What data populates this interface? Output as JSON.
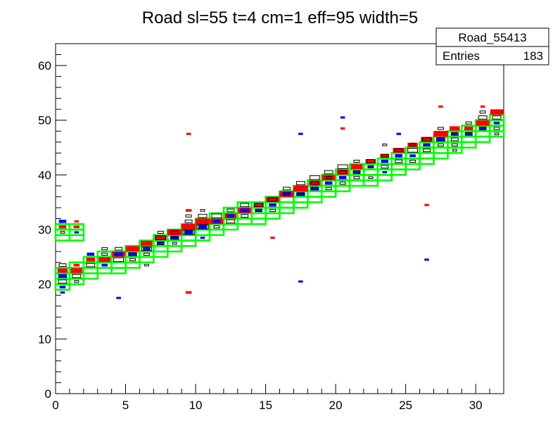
{
  "chart_data": {
    "type": "heatmap",
    "title": "Road sl=55 t=4 cm=1 eff=95 width=5",
    "xlabel": "",
    "ylabel": "",
    "xlim": [
      0,
      32
    ],
    "ylim": [
      0,
      64
    ],
    "x_ticks": [
      0,
      5,
      10,
      15,
      20,
      25,
      30
    ],
    "y_ticks": [
      0,
      10,
      20,
      30,
      40,
      50,
      60
    ],
    "stats": {
      "name": "Road_55413",
      "entries_label": "Entries",
      "entries": "183"
    },
    "road": {
      "color": "#00ff00",
      "x": [
        0,
        1,
        2,
        3,
        4,
        5,
        6,
        7,
        8,
        9,
        10,
        11,
        12,
        13,
        14,
        15,
        16,
        17,
        18,
        19,
        20,
        21,
        22,
        23,
        24,
        25,
        26,
        27,
        28,
        29,
        30,
        31
      ],
      "y_low": [
        19,
        20,
        21,
        22,
        22,
        23,
        24,
        25,
        26,
        27,
        28,
        29,
        30,
        31,
        31,
        32,
        33,
        34,
        35,
        36,
        37,
        38,
        38,
        39,
        40,
        41,
        42,
        43,
        44,
        45,
        46,
        47
      ],
      "y_high": [
        23,
        24,
        25,
        26,
        26,
        27,
        28,
        29,
        30,
        31,
        32,
        33,
        34,
        35,
        35,
        36,
        37,
        38,
        39,
        40,
        41,
        42,
        42,
        43,
        44,
        45,
        46,
        47,
        48,
        49,
        50,
        51
      ],
      "extra_boxes": [
        {
          "x": 0,
          "y_low": 28,
          "y_high": 31
        },
        {
          "x": 1,
          "y_low": 28,
          "y_high": 31
        }
      ]
    },
    "layers": [
      {
        "name": "red",
        "color": "#ff0000",
        "points": [
          [
            0,
            22,
            0.7
          ],
          [
            1,
            22,
            0.8
          ],
          [
            1,
            23,
            0.4
          ],
          [
            2,
            24,
            0.6
          ],
          [
            3,
            24,
            0.8
          ],
          [
            4,
            25,
            0.9
          ],
          [
            5,
            26,
            0.9
          ],
          [
            6,
            27,
            0.8
          ],
          [
            7,
            28,
            0.8
          ],
          [
            8,
            29,
            1.0
          ],
          [
            9,
            30,
            1.0
          ],
          [
            10,
            31,
            1.0
          ],
          [
            11,
            31,
            0.9
          ],
          [
            12,
            32,
            0.8
          ],
          [
            13,
            33,
            0.9
          ],
          [
            14,
            34,
            0.7
          ],
          [
            15,
            35,
            0.9
          ],
          [
            16,
            36,
            1.0
          ],
          [
            17,
            37,
            1.0
          ],
          [
            18,
            38,
            0.8
          ],
          [
            19,
            39,
            0.9
          ],
          [
            20,
            40,
            0.8
          ],
          [
            21,
            41,
            0.8
          ],
          [
            22,
            42,
            0.7
          ],
          [
            23,
            43,
            0.6
          ],
          [
            24,
            44,
            0.8
          ],
          [
            25,
            45,
            0.7
          ],
          [
            26,
            46,
            0.8
          ],
          [
            27,
            47,
            1.0
          ],
          [
            28,
            48,
            0.7
          ],
          [
            29,
            48,
            0.6
          ],
          [
            30,
            49,
            0.9
          ],
          [
            31,
            51,
            0.9
          ],
          [
            0,
            30,
            0.5
          ],
          [
            1,
            30,
            0.4
          ],
          [
            0,
            31,
            0.3
          ],
          [
            1,
            31,
            0.3
          ],
          [
            9,
            47,
            0.3
          ],
          [
            9,
            33,
            0.4
          ],
          [
            9,
            18,
            0.4
          ],
          [
            15,
            28,
            0.3
          ],
          [
            20,
            48,
            0.3
          ],
          [
            26,
            34,
            0.3
          ],
          [
            27,
            52,
            0.3
          ],
          [
            30,
            52,
            0.3
          ],
          [
            19,
            38,
            0.4
          ],
          [
            24,
            43,
            0.4
          ]
        ]
      },
      {
        "name": "blue",
        "color": "#0000ff",
        "points": [
          [
            0,
            21,
            0.6
          ],
          [
            0,
            19,
            0.4
          ],
          [
            0,
            18,
            0.3
          ],
          [
            1,
            29,
            0.3
          ],
          [
            2,
            25,
            0.5
          ],
          [
            3,
            23,
            0.4
          ],
          [
            4,
            25,
            0.6
          ],
          [
            5,
            25,
            0.6
          ],
          [
            6,
            26,
            0.5
          ],
          [
            7,
            27,
            0.4
          ],
          [
            8,
            28,
            0.6
          ],
          [
            9,
            29,
            0.6
          ],
          [
            10,
            30,
            0.6
          ],
          [
            11,
            31,
            0.5
          ],
          [
            12,
            32,
            0.5
          ],
          [
            13,
            33,
            0.6
          ],
          [
            14,
            33,
            0.5
          ],
          [
            15,
            34,
            0.5
          ],
          [
            16,
            36,
            0.6
          ],
          [
            17,
            36,
            0.6
          ],
          [
            18,
            37,
            0.6
          ],
          [
            19,
            38,
            0.5
          ],
          [
            20,
            39,
            0.5
          ],
          [
            21,
            40,
            0.5
          ],
          [
            22,
            41,
            0.4
          ],
          [
            23,
            42,
            0.5
          ],
          [
            24,
            43,
            0.5
          ],
          [
            25,
            43,
            0.4
          ],
          [
            26,
            45,
            0.5
          ],
          [
            27,
            46,
            0.5
          ],
          [
            28,
            47,
            0.4
          ],
          [
            29,
            47,
            0.5
          ],
          [
            30,
            48,
            0.4
          ],
          [
            31,
            49,
            0.4
          ],
          [
            0,
            31,
            0.5
          ],
          [
            4,
            17,
            0.3
          ],
          [
            17,
            47,
            0.3
          ],
          [
            17,
            20,
            0.3
          ],
          [
            20,
            50,
            0.3
          ],
          [
            24,
            47,
            0.3
          ],
          [
            26,
            24,
            0.3
          ],
          [
            10,
            28,
            0.3
          ],
          [
            23,
            40,
            0.3
          ]
        ]
      },
      {
        "name": "black",
        "color": "#000000",
        "points": [
          [
            0,
            23,
            0.5
          ],
          [
            0,
            20,
            0.6
          ],
          [
            1,
            21,
            0.6
          ],
          [
            1,
            20,
            0.3
          ],
          [
            2,
            23,
            0.6
          ],
          [
            3,
            25,
            0.4
          ],
          [
            3,
            26,
            0.4
          ],
          [
            4,
            24,
            0.7
          ],
          [
            4,
            26,
            0.5
          ],
          [
            5,
            25,
            0.5
          ],
          [
            5,
            24,
            0.4
          ],
          [
            6,
            26,
            0.7
          ],
          [
            6,
            25,
            0.4
          ],
          [
            7,
            28,
            0.7
          ],
          [
            7,
            27,
            0.5
          ],
          [
            7,
            29,
            0.4
          ],
          [
            8,
            29,
            0.5
          ],
          [
            8,
            28,
            0.4
          ],
          [
            9,
            29,
            0.8
          ],
          [
            9,
            31,
            0.5
          ],
          [
            9,
            32,
            0.4
          ],
          [
            10,
            30,
            0.8
          ],
          [
            10,
            32,
            0.6
          ],
          [
            11,
            32,
            0.7
          ],
          [
            11,
            30,
            0.4
          ],
          [
            12,
            31,
            0.6
          ],
          [
            12,
            33,
            0.5
          ],
          [
            13,
            34,
            0.6
          ],
          [
            13,
            32,
            0.5
          ],
          [
            14,
            34,
            0.6
          ],
          [
            14,
            33,
            0.4
          ],
          [
            15,
            35,
            0.6
          ],
          [
            15,
            33,
            0.4
          ],
          [
            16,
            37,
            0.5
          ],
          [
            16,
            36,
            0.4
          ],
          [
            17,
            38,
            0.6
          ],
          [
            17,
            36,
            0.4
          ],
          [
            18,
            39,
            0.7
          ],
          [
            18,
            38,
            0.5
          ],
          [
            18,
            37,
            0.4
          ],
          [
            19,
            40,
            0.6
          ],
          [
            19,
            39,
            0.4
          ],
          [
            19,
            37,
            0.4
          ],
          [
            20,
            41,
            0.7
          ],
          [
            20,
            40,
            0.5
          ],
          [
            20,
            38,
            0.4
          ],
          [
            21,
            40,
            0.5
          ],
          [
            21,
            39,
            0.4
          ],
          [
            21,
            42,
            0.4
          ],
          [
            22,
            42,
            0.6
          ],
          [
            22,
            41,
            0.4
          ],
          [
            23,
            43,
            0.5
          ],
          [
            23,
            41,
            0.5
          ],
          [
            23,
            45,
            0.3
          ],
          [
            24,
            44,
            0.5
          ],
          [
            24,
            42,
            0.5
          ],
          [
            25,
            44,
            0.7
          ],
          [
            25,
            45,
            0.4
          ],
          [
            25,
            42,
            0.4
          ],
          [
            26,
            46,
            0.6
          ],
          [
            26,
            44,
            0.5
          ],
          [
            27,
            46,
            0.6
          ],
          [
            27,
            48,
            0.4
          ],
          [
            27,
            45,
            0.4
          ],
          [
            28,
            47,
            0.5
          ],
          [
            28,
            46,
            0.5
          ],
          [
            28,
            45,
            0.4
          ],
          [
            28,
            44,
            0.3
          ],
          [
            29,
            47,
            0.5
          ],
          [
            29,
            49,
            0.4
          ],
          [
            30,
            48,
            0.5
          ],
          [
            30,
            50,
            0.6
          ],
          [
            30,
            51,
            0.4
          ],
          [
            31,
            50,
            0.6
          ],
          [
            31,
            48,
            0.4
          ],
          [
            31,
            47,
            0.3
          ],
          [
            0,
            29,
            0.3
          ],
          [
            8,
            27,
            0.3
          ],
          [
            10,
            33,
            0.3
          ],
          [
            6,
            23,
            0.3
          ],
          [
            22,
            39,
            0.3
          ]
        ]
      }
    ]
  }
}
